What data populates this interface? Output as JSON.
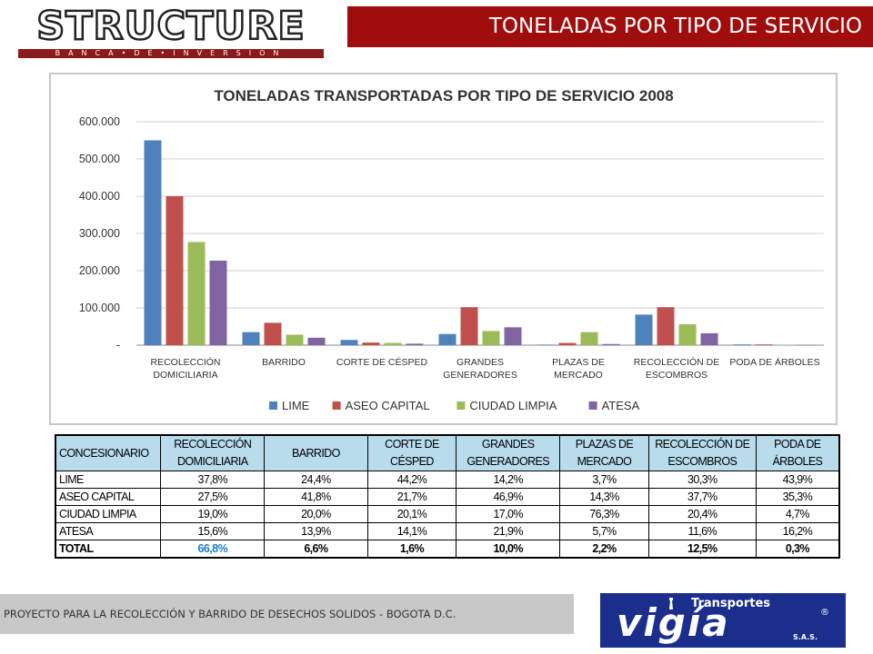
{
  "logo": {
    "name": "STRUCTURE",
    "tagline": "BANCA•DE•INVERSION"
  },
  "header": {
    "title": "TONELADAS POR TIPO DE SERVICIO"
  },
  "chart_data": {
    "type": "bar",
    "title": "TONELADAS TRANSPORTADAS POR TIPO DE SERVICIO 2008",
    "xlabel": "",
    "ylabel": "",
    "categories": [
      [
        "RECOLECCIÓN",
        "DOMICILIARIA"
      ],
      [
        "BARRIDO"
      ],
      [
        "CORTE DE CÉSPED"
      ],
      [
        "GRANDES",
        "GENERADORES"
      ],
      [
        "PLAZAS DE",
        "MERCADO"
      ],
      [
        "RECOLECCIÓN DE",
        "ESCOMBROS"
      ],
      [
        "PODA DE ÁRBOLES"
      ]
    ],
    "series": [
      {
        "name": "LIME",
        "color": "#4f81bd",
        "values": [
          550000,
          35000,
          14000,
          30000,
          1500,
          82000,
          2000
        ]
      },
      {
        "name": "ASEO CAPITAL",
        "color": "#c0504d",
        "values": [
          400000,
          60000,
          7000,
          102000,
          6000,
          102000,
          2000
        ]
      },
      {
        "name": "CIUDAD LIMPIA",
        "color": "#9bbb59",
        "values": [
          277000,
          28000,
          6000,
          38000,
          35000,
          56000,
          500
        ]
      },
      {
        "name": "ATESA",
        "color": "#8064a2",
        "values": [
          227000,
          20000,
          4000,
          48000,
          3000,
          32000,
          500
        ]
      }
    ],
    "ylim": [
      0,
      600000
    ],
    "yticks": [
      "-",
      "100.000",
      "200.000",
      "300.000",
      "400.000",
      "500.000",
      "600.000"
    ],
    "grid": true,
    "legend_position": "bottom"
  },
  "table": {
    "headers": [
      [
        "CONCESIONARIO"
      ],
      [
        "RECOLECCIÓN",
        "DOMICILIARIA"
      ],
      [
        "BARRIDO"
      ],
      [
        "CORTE DE",
        "CÉSPED"
      ],
      [
        "GRANDES",
        "GENERADORES"
      ],
      [
        "PLAZAS DE",
        "MERCADO"
      ],
      [
        "RECOLECCIÓN DE",
        "ESCOMBROS"
      ],
      [
        "PODA DE",
        "ÁRBOLES"
      ]
    ],
    "rows": [
      [
        "LIME",
        "37,8%",
        "24,4%",
        "44,2%",
        "14,2%",
        "3,7%",
        "30,3%",
        "43,9%"
      ],
      [
        "ASEO CAPITAL",
        "27,5%",
        "41,8%",
        "21,7%",
        "46,9%",
        "14,3%",
        "37,7%",
        "35,3%"
      ],
      [
        "CIUDAD LIMPIA",
        "19,0%",
        "20,0%",
        "20,1%",
        "17,0%",
        "76,3%",
        "20,4%",
        "4,7%"
      ],
      [
        "ATESA",
        "15,6%",
        "13,9%",
        "14,1%",
        "21,9%",
        "5,7%",
        "11,6%",
        "16,2%"
      ]
    ],
    "total": [
      "TOTAL",
      "66,8%",
      "6,6%",
      "1,6%",
      "10,0%",
      "2,2%",
      "12,5%",
      "0,3%"
    ]
  },
  "footer": {
    "text": "PROYECTO PARA LA RECOLECCIÓN Y BARRIDO DE DESECHOS SOLIDOS - BOGOTA D.C."
  },
  "brand": {
    "top": "Transportes",
    "name": "vigía",
    "suffix": "S.A.S.",
    "reg": "®"
  }
}
